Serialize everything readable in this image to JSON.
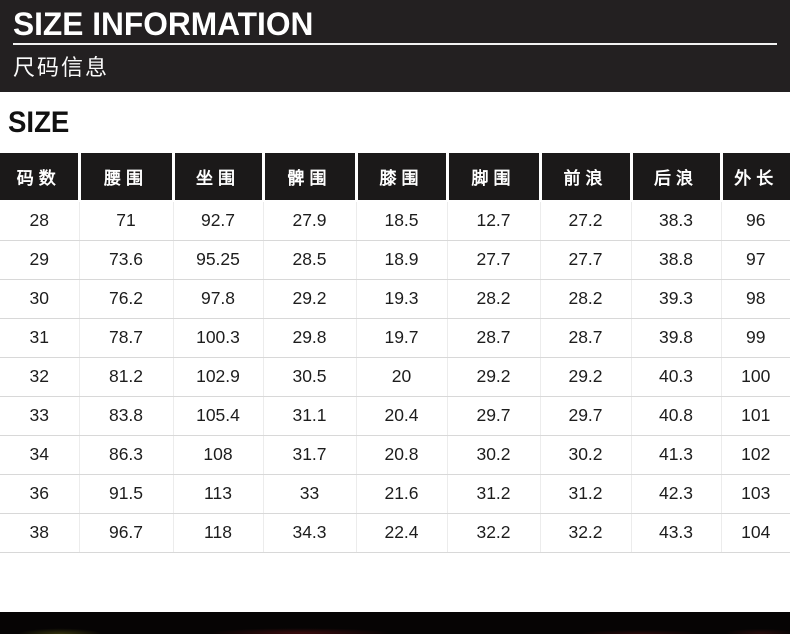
{
  "banner": {
    "title": "SIZE INFORMATION",
    "subtitle": "尺码信息"
  },
  "section": {
    "heading": "SIZE"
  },
  "size_table": {
    "columns": [
      "码数",
      "腰围",
      "坐围",
      "髀围",
      "膝围",
      "脚围",
      "前浪",
      "后浪",
      "外长"
    ],
    "rows": [
      [
        "28",
        "71",
        "92.7",
        "27.9",
        "18.5",
        "12.7",
        "27.2",
        "38.3",
        "96"
      ],
      [
        "29",
        "73.6",
        "95.25",
        "28.5",
        "18.9",
        "27.7",
        "27.7",
        "38.8",
        "97"
      ],
      [
        "30",
        "76.2",
        "97.8",
        "29.2",
        "19.3",
        "28.2",
        "28.2",
        "39.3",
        "98"
      ],
      [
        "31",
        "78.7",
        "100.3",
        "29.8",
        "19.7",
        "28.7",
        "28.7",
        "39.8",
        "99"
      ],
      [
        "32",
        "81.2",
        "102.9",
        "30.5",
        "20",
        "29.2",
        "29.2",
        "40.3",
        "100"
      ],
      [
        "33",
        "83.8",
        "105.4",
        "31.1",
        "20.4",
        "29.7",
        "29.7",
        "40.8",
        "101"
      ],
      [
        "34",
        "86.3",
        "108",
        "31.7",
        "20.8",
        "30.2",
        "30.2",
        "41.3",
        "102"
      ],
      [
        "36",
        "91.5",
        "113",
        "33",
        "21.6",
        "31.2",
        "31.2",
        "42.3",
        "103"
      ],
      [
        "38",
        "96.7",
        "118",
        "34.3",
        "22.4",
        "32.2",
        "32.2",
        "43.3",
        "104"
      ]
    ]
  },
  "colors": {
    "banner_bg": "#232021",
    "header_cell_bg": "#1b1919",
    "row_border": "#d8d8d8",
    "bottom_strip_bg": "#060404"
  }
}
